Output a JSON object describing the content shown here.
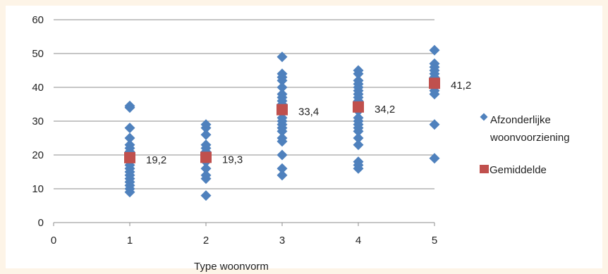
{
  "chart_data": {
    "type": "scatter",
    "title": "",
    "xlabel": "Type woonvorm",
    "ylabel": "",
    "xlim": [
      0,
      5
    ],
    "ylim": [
      0,
      60
    ],
    "x_ticks": [
      "0",
      "1",
      "2",
      "3",
      "4",
      "5"
    ],
    "y_ticks": [
      "0",
      "10",
      "20",
      "30",
      "40",
      "50",
      "60"
    ],
    "grid": "horizontal",
    "legend_position": "right",
    "series": [
      {
        "name": "Afzonderlijke woonvoorziening",
        "marker": "diamond",
        "color": "#4f81bd",
        "points": [
          [
            1,
            9
          ],
          [
            1,
            10
          ],
          [
            1,
            11
          ],
          [
            1,
            12
          ],
          [
            1,
            13
          ],
          [
            1,
            14
          ],
          [
            1,
            15
          ],
          [
            1,
            16
          ],
          [
            1,
            17
          ],
          [
            1,
            18
          ],
          [
            1,
            19
          ],
          [
            1,
            20
          ],
          [
            1,
            21
          ],
          [
            1,
            22
          ],
          [
            1,
            23
          ],
          [
            1,
            25
          ],
          [
            1,
            28
          ],
          [
            1,
            34
          ],
          [
            1,
            34.5
          ],
          [
            2,
            8
          ],
          [
            2,
            13
          ],
          [
            2,
            14
          ],
          [
            2,
            16
          ],
          [
            2,
            18
          ],
          [
            2,
            19
          ],
          [
            2,
            20
          ],
          [
            2,
            21
          ],
          [
            2,
            22
          ],
          [
            2,
            23
          ],
          [
            2,
            26
          ],
          [
            2,
            28
          ],
          [
            2,
            29
          ],
          [
            3,
            14
          ],
          [
            3,
            16
          ],
          [
            3,
            20
          ],
          [
            3,
            24
          ],
          [
            3,
            25
          ],
          [
            3,
            27
          ],
          [
            3,
            28
          ],
          [
            3,
            29
          ],
          [
            3,
            30
          ],
          [
            3,
            31
          ],
          [
            3,
            33
          ],
          [
            3,
            35
          ],
          [
            3,
            36
          ],
          [
            3,
            37
          ],
          [
            3,
            38
          ],
          [
            3,
            40
          ],
          [
            3,
            42
          ],
          [
            3,
            43
          ],
          [
            3,
            44
          ],
          [
            3,
            49
          ],
          [
            4,
            16
          ],
          [
            4,
            17
          ],
          [
            4,
            18
          ],
          [
            4,
            23
          ],
          [
            4,
            25
          ],
          [
            4,
            27
          ],
          [
            4,
            28
          ],
          [
            4,
            29
          ],
          [
            4,
            30
          ],
          [
            4,
            31
          ],
          [
            4,
            33
          ],
          [
            4,
            35
          ],
          [
            4,
            36
          ],
          [
            4,
            37
          ],
          [
            4,
            38
          ],
          [
            4,
            39
          ],
          [
            4,
            40
          ],
          [
            4,
            41
          ],
          [
            4,
            42
          ],
          [
            4,
            44
          ],
          [
            4,
            45
          ],
          [
            5,
            19
          ],
          [
            5,
            29
          ],
          [
            5,
            38
          ],
          [
            5,
            39
          ],
          [
            5,
            40
          ],
          [
            5,
            41
          ],
          [
            5,
            42
          ],
          [
            5,
            43
          ],
          [
            5,
            44
          ],
          [
            5,
            45
          ],
          [
            5,
            46
          ],
          [
            5,
            47
          ],
          [
            5,
            51
          ]
        ]
      },
      {
        "name": "Gemiddelde",
        "marker": "square",
        "color": "#c0504d",
        "points": [
          [
            1,
            19.2
          ],
          [
            2,
            19.3
          ],
          [
            3,
            33.4
          ],
          [
            4,
            34.2
          ],
          [
            5,
            41.2
          ]
        ],
        "labels": [
          "19,2",
          "19,3",
          "33,4",
          "34,2",
          "41,2"
        ]
      }
    ],
    "legend": {
      "entries": [
        {
          "lines": [
            "Afzonderlijke",
            "woonvoorziening"
          ]
        },
        {
          "lines": [
            "Gemiddelde"
          ]
        }
      ]
    }
  }
}
